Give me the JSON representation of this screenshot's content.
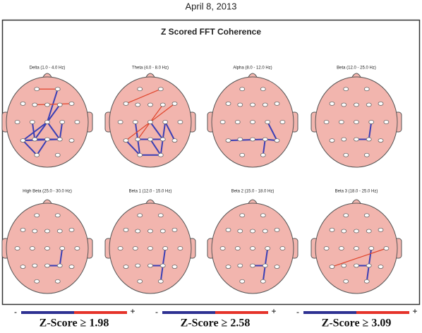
{
  "header": {
    "title": "April 8, 2013"
  },
  "figure": {
    "title": "Z Scored FFT Coherence",
    "panels": [
      {
        "label": "Delta (1.0 - 4.0 Hz)"
      },
      {
        "label": "Theta (4.0 - 8.0 Hz)"
      },
      {
        "label": "Alpha (8.0 - 12.0 Hz)"
      },
      {
        "label": "Beta (12.0 - 25.0 Hz)"
      },
      {
        "label": "High Beta (25.0 - 30.0 Hz)"
      },
      {
        "label": "Beta 1 (12.0 - 15.0 Hz)"
      },
      {
        "label": "Beta 2 (15.0 - 18.0 Hz)"
      },
      {
        "label": "Beta 3 (18.0 - 25.0 Hz)"
      }
    ]
  },
  "legend": [
    {
      "minus": "-",
      "plus": "+",
      "label": "Z-Score ≥ 1.98"
    },
    {
      "minus": "-",
      "plus": "+",
      "label": "Z-Score ≥ 2.58"
    },
    {
      "minus": "-",
      "plus": "+",
      "label": "Z-Score ≥ 3.09"
    }
  ]
}
